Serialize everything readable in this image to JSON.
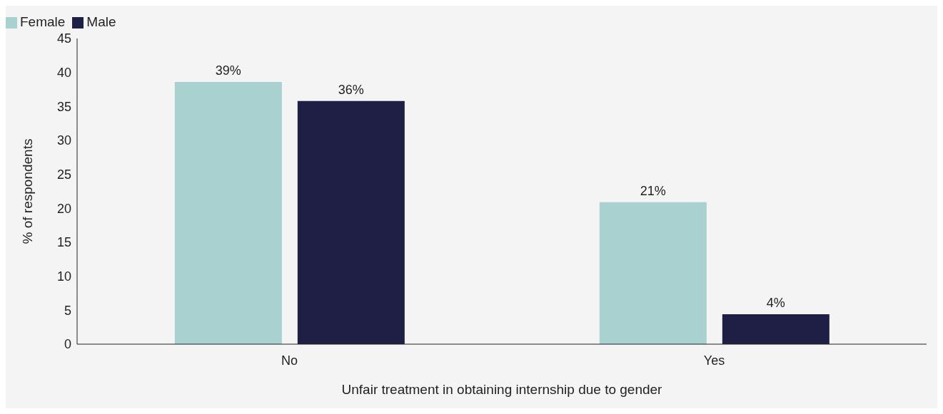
{
  "chart_data": {
    "type": "bar",
    "xlabel": "Unfair treatment in obtaining internship due to gender",
    "ylabel": "% of respondents",
    "categories": [
      "No",
      "Yes"
    ],
    "series": [
      {
        "name": "Female",
        "color": "#a8d1cf",
        "values": [
          38.6,
          20.9
        ],
        "value_labels": [
          "39%",
          "21%"
        ]
      },
      {
        "name": "Male",
        "color": "#1f1f45",
        "values": [
          35.8,
          4.4
        ],
        "value_labels": [
          "36%",
          "4%"
        ]
      }
    ],
    "ylim": [
      0,
      45
    ],
    "yticks": [
      0,
      5,
      10,
      15,
      20,
      25,
      30,
      35,
      40,
      45
    ],
    "grid": false,
    "legend": "top left"
  }
}
